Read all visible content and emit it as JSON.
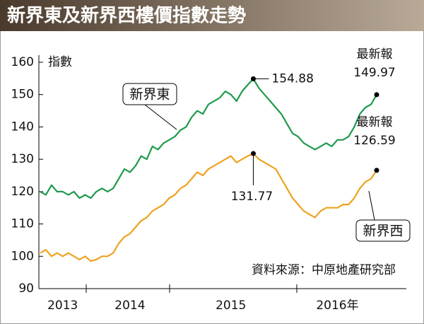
{
  "chart_data": {
    "type": "line",
    "title": "新界東及新界西樓價指數走勢",
    "y_axis_label": "指數",
    "source": "資料來源：中原地產研究部",
    "categories": [
      null,
      null,
      null,
      null,
      "2013",
      null,
      null,
      null,
      null,
      null,
      null,
      null,
      null,
      null,
      null,
      null,
      "2014",
      null,
      null,
      null,
      null,
      null,
      null,
      null,
      null,
      null,
      null,
      null,
      null,
      null,
      null,
      null,
      null,
      null,
      "2015",
      null,
      null,
      null,
      null,
      null,
      null,
      null,
      null,
      null,
      null,
      null,
      null,
      null,
      null,
      null,
      null,
      null,
      null,
      "2016年",
      null,
      null,
      null,
      null,
      null,
      null,
      null
    ],
    "ylim": [
      90,
      160
    ],
    "yticks": [
      90,
      100,
      110,
      120,
      130,
      140,
      150,
      160
    ],
    "series": [
      {
        "name": "新界東",
        "color": "#1e9a4c",
        "latest_label": "最新報",
        "values": [
          120,
          119,
          122,
          120,
          120,
          119,
          120,
          118,
          119,
          118,
          120,
          121,
          120,
          121,
          124,
          127,
          126,
          128,
          131,
          130,
          134,
          133,
          135,
          136,
          137,
          139,
          140,
          143,
          145,
          144,
          147,
          148,
          149,
          151,
          150,
          148,
          151,
          153,
          154.88,
          152,
          150,
          148,
          146,
          144,
          141,
          138,
          137,
          135,
          134,
          133,
          134,
          135,
          134,
          136,
          136,
          137,
          140,
          144,
          146,
          147,
          149.97
        ]
      },
      {
        "name": "新界西",
        "color": "#eea21f",
        "latest_label": "最新報",
        "values": [
          101,
          102,
          100,
          101,
          100,
          101,
          100,
          99,
          100,
          98.5,
          99,
          100,
          100,
          101,
          104,
          106,
          107,
          109,
          111,
          112,
          114,
          115,
          116,
          118,
          119,
          121,
          122,
          124,
          126,
          125,
          127,
          128,
          129,
          130,
          131,
          129,
          130,
          131,
          131.77,
          130,
          129,
          128,
          127,
          124,
          121,
          118,
          116,
          114,
          113,
          112,
          114,
          115,
          115,
          115,
          116,
          116,
          118,
          121,
          123,
          124,
          126.59
        ]
      }
    ]
  }
}
